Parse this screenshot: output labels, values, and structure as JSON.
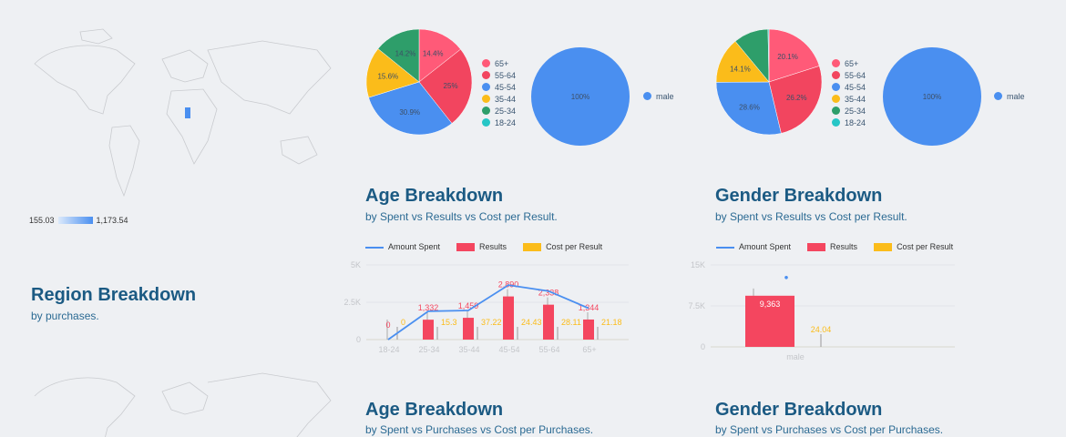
{
  "colors": {
    "65+": "#ff5a78",
    "55-64": "#f2455f",
    "45-54": "#4a8ff0",
    "35-44": "#fbbc1a",
    "25-34": "#2e9e6a",
    "18-24": "#26c6c6",
    "title": "#1b5a83",
    "results": "#f4465f",
    "cost": "#fbbc1a",
    "spent": "#4a8ff0"
  },
  "region": {
    "title": "Region Breakdown",
    "subtitle": "by purchases.",
    "scale_min": "155.03",
    "scale_max": "1,173.54"
  },
  "age_results": {
    "title": "Age Breakdown",
    "subtitle": "by Spent vs Results vs Cost per Result."
  },
  "gender_results": {
    "title": "Gender Breakdown",
    "subtitle": "by Spent vs Results vs Cost per Result."
  },
  "age_purchases": {
    "title": "Age Breakdown",
    "subtitle": "by Spent vs Purchases vs Cost per Purchases."
  },
  "gender_purchases": {
    "title": "Gender Breakdown",
    "subtitle": "by Spent vs Purchases vs Cost per Purchases."
  },
  "chart_data": [
    {
      "type": "pie",
      "categories": [
        "65+",
        "55-64",
        "45-54",
        "35-44",
        "25-34",
        "18-24"
      ],
      "values": [
        14.4,
        25,
        30.9,
        15.6,
        14.2,
        0
      ],
      "labels": [
        "14.4%",
        "25%",
        "30.9%",
        "15.6%",
        "14.2%",
        ""
      ],
      "legend": "right"
    },
    {
      "type": "pie",
      "categories": [
        "male"
      ],
      "values": [
        100
      ],
      "labels": [
        "100%"
      ],
      "legend": "right"
    },
    {
      "type": "pie",
      "categories": [
        "65+",
        "55-64",
        "45-54",
        "35-44",
        "25-34",
        "18-24"
      ],
      "values": [
        20.1,
        26.2,
        28.6,
        14.1,
        10.7,
        0.3
      ],
      "labels": [
        "20.1%",
        "26.2%",
        "28.6%",
        "14.1%",
        "",
        ""
      ],
      "legend": "right"
    },
    {
      "type": "pie",
      "categories": [
        "male"
      ],
      "values": [
        100
      ],
      "labels": [
        "100%"
      ],
      "legend": "right"
    },
    {
      "type": "bar",
      "categories": [
        "18-24",
        "25-34",
        "35-44",
        "45-54",
        "55-64",
        "65+"
      ],
      "ylim": [
        0,
        5000
      ],
      "yticks": [
        "0",
        "2.5K",
        "5K"
      ],
      "series": [
        {
          "name": "Amount Spent",
          "type": "line",
          "values": [
            0,
            1900,
            1950,
            3650,
            3250,
            2100
          ]
        },
        {
          "name": "Results",
          "type": "bar",
          "values": [
            0,
            1332,
            1459,
            2890,
            2338,
            1344
          ],
          "labels": [
            "0",
            "1,332",
            "1,459",
            "2,890",
            "2,338",
            "1,344"
          ]
        },
        {
          "name": "Cost per Result",
          "type": "bar",
          "values": [
            0,
            15.3,
            37.22,
            24.43,
            28.11,
            21.18
          ],
          "labels": [
            "0",
            "15.3",
            "37.22",
            "24.43",
            "28.11",
            "21.18"
          ]
        }
      ],
      "legend": "top-left",
      "grid": true
    },
    {
      "type": "bar",
      "categories": [
        "male"
      ],
      "ylim": [
        0,
        15000
      ],
      "yticks": [
        "0",
        "7.5K",
        "15K"
      ],
      "series": [
        {
          "name": "Amount Spent",
          "type": "line",
          "values": [
            12700
          ]
        },
        {
          "name": "Results",
          "type": "bar",
          "values": [
            9363
          ],
          "labels": [
            "9,363"
          ]
        },
        {
          "name": "Cost per Result",
          "type": "bar",
          "values": [
            24.04
          ],
          "labels": [
            "24.04"
          ]
        }
      ],
      "legend": "top-left",
      "grid": true
    }
  ]
}
